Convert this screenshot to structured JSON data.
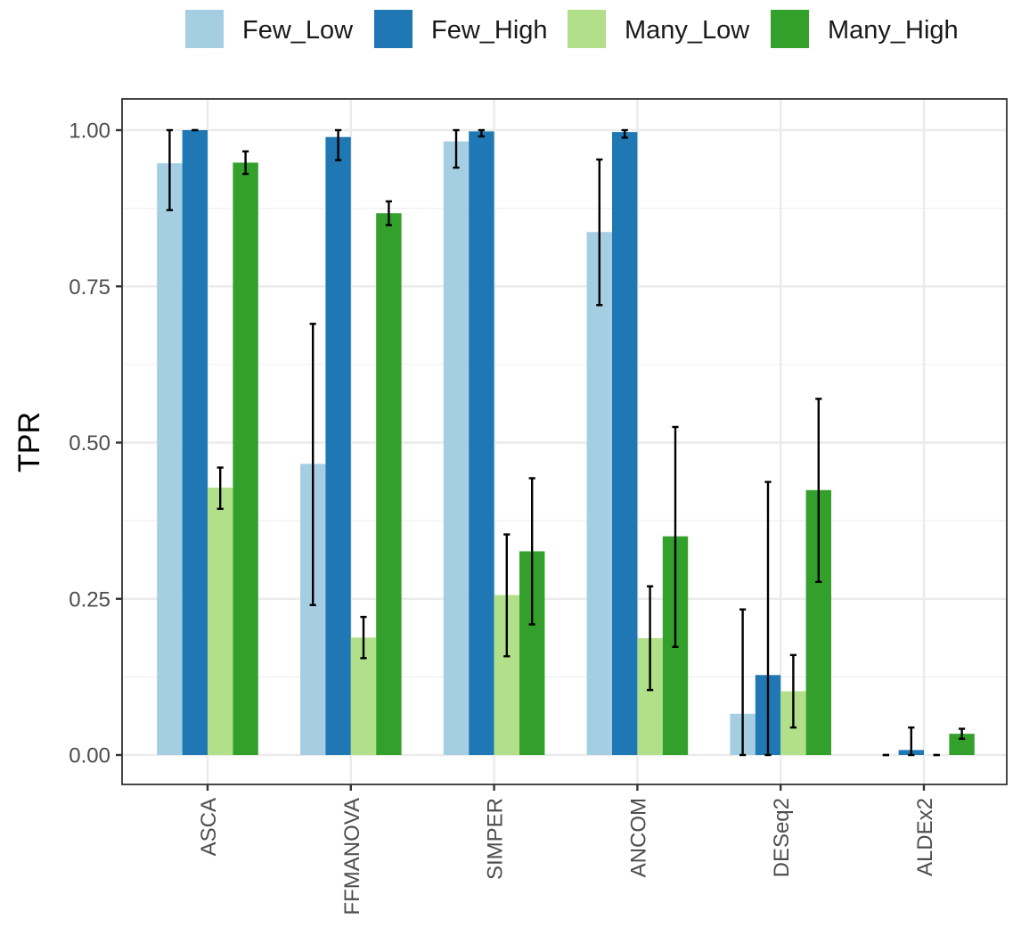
{
  "chart_data": {
    "type": "bar",
    "title": "",
    "xlabel": "",
    "ylabel": "TPR",
    "ylim": [
      -0.047,
      1.047
    ],
    "yticks": [
      0.0,
      0.25,
      0.5,
      0.75,
      1.0
    ],
    "ytick_labels": [
      "0.00",
      "0.25",
      "0.50",
      "0.75",
      "1.00"
    ],
    "categories": [
      "ASCA",
      "FFMANOVA",
      "SIMPER",
      "ANCOM",
      "DESeq2",
      "ALDEx2"
    ],
    "grid": true,
    "legend_position": "top",
    "series": [
      {
        "name": "Few_Low",
        "color": "#a6cee3",
        "values": [
          0.947,
          0.466,
          0.982,
          0.837,
          0.066,
          0.0
        ],
        "error_low": [
          0.872,
          0.24,
          0.94,
          0.72,
          0.0,
          0.0
        ],
        "error_high": [
          1.0,
          0.69,
          1.0,
          0.953,
          0.233,
          0.0
        ]
      },
      {
        "name": "Few_High",
        "color": "#1f78b4",
        "values": [
          1.0,
          0.989,
          0.998,
          0.997,
          0.128,
          0.008
        ],
        "error_low": [
          1.0,
          0.952,
          0.99,
          0.988,
          0.0,
          0.0
        ],
        "error_high": [
          1.0,
          1.0,
          1.0,
          1.0,
          0.437,
          0.044
        ]
      },
      {
        "name": "Many_Low",
        "color": "#b2df8a",
        "values": [
          0.428,
          0.188,
          0.256,
          0.187,
          0.102,
          0.0
        ],
        "error_low": [
          0.394,
          0.155,
          0.158,
          0.104,
          0.044,
          0.0
        ],
        "error_high": [
          0.46,
          0.221,
          0.353,
          0.27,
          0.16,
          0.0
        ]
      },
      {
        "name": "Many_High",
        "color": "#33a02c",
        "values": [
          0.948,
          0.867,
          0.326,
          0.35,
          0.424,
          0.034
        ],
        "error_low": [
          0.93,
          0.848,
          0.209,
          0.173,
          0.277,
          0.026
        ],
        "error_high": [
          0.966,
          0.886,
          0.443,
          0.525,
          0.57,
          0.042
        ]
      }
    ]
  }
}
